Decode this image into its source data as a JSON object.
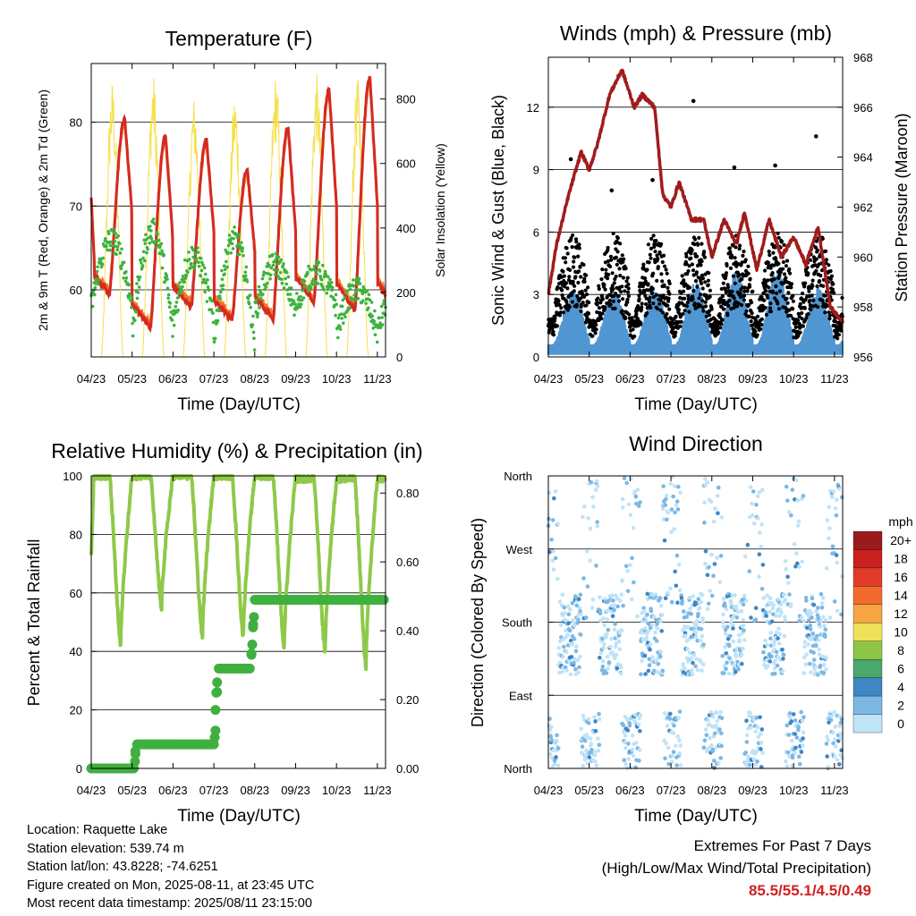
{
  "colors": {
    "temp2m": "#d42a22",
    "temp9m": "#f07a2a",
    "dewpoint": "#3db33d",
    "solar": "#f5e04a",
    "wind": "#4f96d2",
    "gust": "#000000",
    "pressure": "#a01c1c",
    "rh": "#8ec94a",
    "precip": "#3fb03f"
  },
  "panels": {
    "temperature": {
      "title": "Temperature (F)",
      "xlabel": "Time (Day/UTC)",
      "ylabel_left": "2m & 9m T (Red, Orange) & 2m Td (Green)",
      "ylabel_right": "Solar Insolation (Yellow)"
    },
    "winds": {
      "title": "Winds (mph) & Pressure (mb)",
      "xlabel": "Time (Day/UTC)",
      "ylabel_left": "Sonic Wind & Gust (Blue, Black)",
      "ylabel_right": "Station Pressure (Maroon)"
    },
    "humidity": {
      "title": "Relative Humidity (%) & Precipitation (in)",
      "xlabel": "Time (Day/UTC)",
      "ylabel_left": "Percent & Total Rainfall"
    },
    "direction": {
      "title": "Wind Direction",
      "xlabel": "Time (Day/UTC)",
      "ylabel_left": "Direction (Colored By Speed)"
    }
  },
  "colorbar": {
    "title": "mph",
    "labels": [
      "20+",
      "18",
      "16",
      "14",
      "12",
      "10",
      "8",
      "6",
      "4",
      "2",
      "0"
    ],
    "colors": [
      "#9a1b1b",
      "#c9211e",
      "#e33b2a",
      "#f26a2e",
      "#f7a443",
      "#ede25a",
      "#8fc546",
      "#4aa86a",
      "#3f86c4",
      "#7cb8e4",
      "#bfe3f7"
    ]
  },
  "info": {
    "location": "Location: Raquette Lake",
    "elevation": "Station elevation: 539.74 m",
    "latlon": "Station lat/lon: 43.8228; -74.6251",
    "created": "Figure created on Mon, 2025-08-11, at 23:45 UTC",
    "recent": "Most recent data timestamp: 2025/08/11 23:15:00"
  },
  "extremes": {
    "title": "Extremes For Past 7 Days",
    "subtitle": "(High/Low/Max Wind/Total Precipitation)",
    "values": "85.5/55.1/4.5/0.49"
  },
  "chart_data": [
    {
      "type": "line",
      "title": "Temperature (F)",
      "x_ticks": [
        "04/23",
        "05/23",
        "06/23",
        "07/23",
        "08/23",
        "09/23",
        "10/23",
        "11/23"
      ],
      "ylim": [
        52,
        87
      ],
      "y_ticks": [
        60,
        70,
        80
      ],
      "y2lim": [
        0,
        910
      ],
      "y2_ticks": [
        0,
        200,
        400,
        600,
        800
      ],
      "series": [
        {
          "name": "2m T",
          "daily_max": [
            80.5,
            78.5,
            78,
            74.5,
            79.5,
            84,
            85.5
          ],
          "daily_min": [
            59.5,
            55.5,
            58,
            56.5,
            56.5,
            58.5,
            57.5
          ]
        },
        {
          "name": "9m T",
          "daily_max": [
            80,
            78,
            77.5,
            74,
            79,
            83.5,
            85
          ],
          "daily_min": [
            60,
            56,
            58.5,
            57,
            57,
            59,
            58
          ]
        },
        {
          "name": "2m Td",
          "daily_max": [
            66,
            67,
            64,
            66,
            63,
            62,
            60
          ],
          "daily_min": [
            58,
            55,
            56,
            54,
            57,
            58,
            55
          ]
        },
        {
          "name": "Solar Insolation",
          "daily_peak": [
            860,
            880,
            810,
            820,
            880,
            880,
            870
          ]
        }
      ]
    },
    {
      "type": "line",
      "title": "Winds (mph) & Pressure (mb)",
      "x_ticks": [
        "04/23",
        "05/23",
        "06/23",
        "07/23",
        "08/23",
        "09/23",
        "10/23",
        "11/23"
      ],
      "ylim": [
        0,
        14.4
      ],
      "y_ticks": [
        0,
        3,
        6,
        9,
        12
      ],
      "y2lim": [
        956,
        968
      ],
      "y2_ticks": [
        956,
        958,
        960,
        962,
        964,
        966,
        968
      ],
      "series": [
        {
          "name": "Station Pressure",
          "x": [
            0,
            0.2,
            0.5,
            0.8,
            1.0,
            1.2,
            1.5,
            1.8,
            2.1,
            2.3,
            2.6,
            2.8,
            3.0,
            3.2,
            3.5,
            3.8,
            4.0,
            4.3,
            4.6,
            4.8,
            5.1,
            5.4,
            5.7,
            6.0,
            6.3,
            6.6,
            6.9,
            7.2
          ],
          "y": [
            958.5,
            960.5,
            962.5,
            964.2,
            963.5,
            964.5,
            966.5,
            967.5,
            966.0,
            966.5,
            966.0,
            962.5,
            962.0,
            963.0,
            961.5,
            961.5,
            960.0,
            961.5,
            960.5,
            961.8,
            959.5,
            961.5,
            960.0,
            960.8,
            959.7,
            961.2,
            958.0,
            957.4
          ]
        },
        {
          "name": "Sonic Wind",
          "daily_max": [
            3.3,
            3.2,
            3.5,
            3.7,
            4.2,
            4.4,
            3.4
          ]
        },
        {
          "name": "Gust",
          "daily_max": [
            9.5,
            8.0,
            8.5,
            12.3,
            9.1,
            9.2,
            10.6
          ]
        }
      ]
    },
    {
      "type": "line",
      "title": "Relative Humidity (%) & Precipitation (in)",
      "x_ticks": [
        "04/23",
        "05/23",
        "06/23",
        "07/23",
        "08/23",
        "09/23",
        "10/23",
        "11/23"
      ],
      "ylim": [
        0,
        100
      ],
      "y_ticks": [
        0,
        20,
        40,
        60,
        80,
        100
      ],
      "y2lim": [
        0,
        0.85
      ],
      "y2_ticks": [
        "0.00",
        "0.20",
        "0.40",
        "0.60",
        "0.80"
      ],
      "series": [
        {
          "name": "Relative Humidity",
          "daily_min": [
            42,
            55,
            45,
            45,
            41,
            40,
            35
          ],
          "daily_max": [
            100,
            100,
            100,
            100,
            100,
            99,
            99
          ]
        },
        {
          "name": "Total Precipitation",
          "x": [
            0,
            1.05,
            1.1,
            3.0,
            3.05,
            3.1,
            3.9,
            3.95,
            4.0,
            7.2
          ],
          "y": [
            0.0,
            0.0,
            0.07,
            0.07,
            0.12,
            0.29,
            0.29,
            0.4,
            0.49,
            0.49
          ]
        }
      ]
    },
    {
      "type": "scatter",
      "title": "Wind Direction",
      "x_ticks": [
        "04/23",
        "05/23",
        "06/23",
        "07/23",
        "08/23",
        "09/23",
        "10/23",
        "11/23"
      ],
      "y_ticks": [
        "North",
        "East",
        "South",
        "West",
        "North"
      ],
      "ylim": [
        0,
        360
      ],
      "colorbar_title": "mph",
      "colorbar_labels": [
        "20+",
        "18",
        "16",
        "14",
        "12",
        "10",
        "8",
        "6",
        "4",
        "2",
        "0"
      ]
    }
  ]
}
